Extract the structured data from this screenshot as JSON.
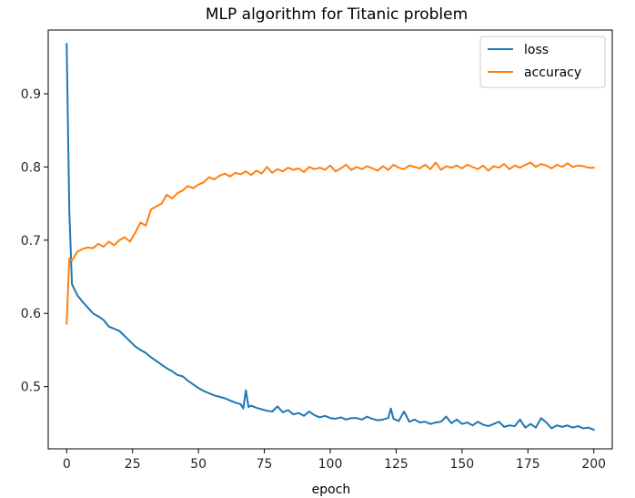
{
  "chart_data": {
    "type": "line",
    "title": "MLP algorithm for Titanic problem",
    "xlabel": "epoch",
    "ylabel": "",
    "xlim": [
      -7,
      207
    ],
    "ylim": [
      0.415,
      0.987
    ],
    "xticks": [
      0,
      25,
      50,
      75,
      100,
      125,
      150,
      175,
      200
    ],
    "yticks": [
      0.5,
      0.6,
      0.7,
      0.8,
      0.9
    ],
    "grid": false,
    "legend_position": "top-right",
    "series": [
      {
        "name": "loss",
        "color": "#1f77b4",
        "x": [
          0,
          1,
          2,
          4,
          6,
          8,
          10,
          12,
          14,
          16,
          18,
          20,
          22,
          24,
          26,
          28,
          30,
          32,
          34,
          36,
          38,
          40,
          42,
          44,
          46,
          48,
          50,
          52,
          54,
          56,
          58,
          60,
          62,
          64,
          66,
          67,
          68,
          69,
          70,
          72,
          74,
          76,
          78,
          80,
          82,
          84,
          86,
          88,
          90,
          92,
          94,
          96,
          98,
          100,
          102,
          104,
          106,
          108,
          110,
          112,
          114,
          116,
          118,
          120,
          122,
          123,
          124,
          126,
          128,
          130,
          132,
          134,
          136,
          138,
          140,
          142,
          144,
          146,
          148,
          150,
          152,
          154,
          156,
          158,
          160,
          162,
          164,
          166,
          168,
          170,
          172,
          174,
          176,
          178,
          180,
          182,
          184,
          186,
          188,
          190,
          192,
          194,
          196,
          198,
          200
        ],
        "values": [
          0.968,
          0.74,
          0.64,
          0.625,
          0.616,
          0.608,
          0.6,
          0.596,
          0.591,
          0.582,
          0.579,
          0.576,
          0.569,
          0.562,
          0.555,
          0.55,
          0.546,
          0.54,
          0.535,
          0.53,
          0.525,
          0.521,
          0.516,
          0.514,
          0.508,
          0.503,
          0.498,
          0.494,
          0.491,
          0.488,
          0.486,
          0.484,
          0.481,
          0.478,
          0.476,
          0.47,
          0.495,
          0.472,
          0.474,
          0.471,
          0.469,
          0.467,
          0.466,
          0.473,
          0.465,
          0.468,
          0.462,
          0.464,
          0.46,
          0.466,
          0.461,
          0.458,
          0.46,
          0.457,
          0.456,
          0.458,
          0.455,
          0.457,
          0.457,
          0.455,
          0.459,
          0.456,
          0.454,
          0.455,
          0.457,
          0.47,
          0.456,
          0.453,
          0.466,
          0.452,
          0.455,
          0.451,
          0.452,
          0.449,
          0.451,
          0.452,
          0.459,
          0.45,
          0.455,
          0.449,
          0.451,
          0.447,
          0.452,
          0.448,
          0.446,
          0.449,
          0.452,
          0.445,
          0.447,
          0.446,
          0.455,
          0.444,
          0.449,
          0.444,
          0.457,
          0.451,
          0.443,
          0.447,
          0.445,
          0.447,
          0.444,
          0.446,
          0.443,
          0.444,
          0.441
        ]
      },
      {
        "name": "accuracy",
        "color": "#ff7f0e",
        "x": [
          0,
          1,
          2,
          4,
          6,
          8,
          10,
          12,
          14,
          16,
          18,
          20,
          22,
          24,
          26,
          28,
          30,
          32,
          34,
          36,
          38,
          40,
          42,
          44,
          46,
          48,
          50,
          52,
          54,
          56,
          58,
          60,
          62,
          64,
          66,
          68,
          70,
          72,
          74,
          76,
          78,
          80,
          82,
          84,
          86,
          88,
          90,
          92,
          94,
          96,
          98,
          100,
          102,
          104,
          106,
          108,
          110,
          112,
          114,
          116,
          118,
          120,
          122,
          124,
          126,
          128,
          130,
          132,
          134,
          136,
          138,
          140,
          142,
          144,
          146,
          148,
          150,
          152,
          154,
          156,
          158,
          160,
          162,
          164,
          166,
          168,
          170,
          172,
          174,
          176,
          178,
          180,
          182,
          184,
          186,
          188,
          190,
          192,
          194,
          196,
          198,
          200
        ],
        "values": [
          0.586,
          0.675,
          0.672,
          0.684,
          0.688,
          0.69,
          0.689,
          0.695,
          0.691,
          0.698,
          0.693,
          0.7,
          0.704,
          0.698,
          0.71,
          0.724,
          0.72,
          0.742,
          0.746,
          0.75,
          0.762,
          0.757,
          0.764,
          0.768,
          0.774,
          0.771,
          0.776,
          0.779,
          0.786,
          0.783,
          0.788,
          0.791,
          0.787,
          0.792,
          0.79,
          0.794,
          0.789,
          0.795,
          0.791,
          0.8,
          0.792,
          0.797,
          0.794,
          0.799,
          0.796,
          0.798,
          0.793,
          0.8,
          0.797,
          0.799,
          0.796,
          0.802,
          0.794,
          0.798,
          0.803,
          0.796,
          0.8,
          0.797,
          0.801,
          0.798,
          0.795,
          0.801,
          0.796,
          0.803,
          0.799,
          0.797,
          0.802,
          0.8,
          0.798,
          0.803,
          0.797,
          0.806,
          0.796,
          0.801,
          0.799,
          0.802,
          0.798,
          0.803,
          0.8,
          0.797,
          0.802,
          0.795,
          0.801,
          0.799,
          0.804,
          0.797,
          0.802,
          0.799,
          0.803,
          0.806,
          0.8,
          0.804,
          0.802,
          0.798,
          0.803,
          0.8,
          0.805,
          0.8,
          0.802,
          0.801,
          0.799,
          0.799
        ]
      }
    ]
  }
}
